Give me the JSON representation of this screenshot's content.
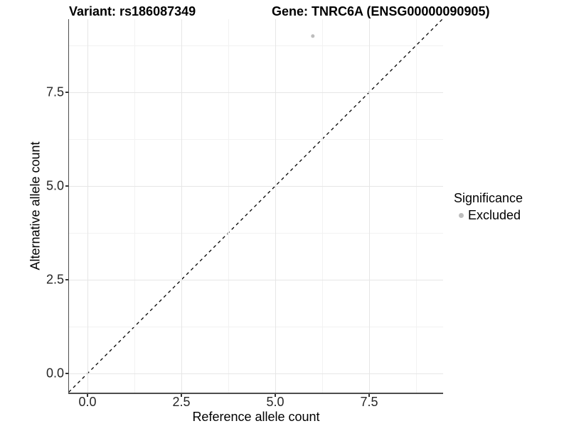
{
  "header": {
    "variant_title": "Variant: rs186087349",
    "gene_title": "Gene: TNRC6A (ENSG00000090905)"
  },
  "chart_data": {
    "type": "scatter",
    "title": "Variant: rs186087349   Gene: TNRC6A (ENSG00000090905)",
    "xlabel": "Reference allele count",
    "ylabel": "Alternative allele count",
    "xlim": [
      -0.5,
      9.45
    ],
    "ylim": [
      -0.5,
      9.45
    ],
    "x_ticks": {
      "values": [
        0,
        2.5,
        5,
        7.5
      ],
      "labels": [
        "0.0",
        "2.5",
        "5.0",
        "7.5"
      ]
    },
    "y_ticks": {
      "values": [
        0,
        2.5,
        5,
        7.5
      ],
      "labels": [
        "0.0",
        "2.5",
        "5.0",
        "7.5"
      ]
    },
    "grid": {
      "major": true,
      "minor": true,
      "major_color": "#e6e6e6",
      "minor_color": "#f2f2f2"
    },
    "series": [
      {
        "name": "Excluded",
        "color": "#bdbdbd",
        "points": [
          [
            6,
            9
          ]
        ],
        "point_radius": 2.5
      }
    ],
    "reference_line": {
      "slope": 1,
      "intercept": 0,
      "style": "dashed",
      "color": "#000000",
      "width": 1.3,
      "dash": "4.5,4.5"
    },
    "legend": {
      "title": "Significance",
      "position": "right",
      "entries": [
        {
          "label": "Excluded",
          "color": "#bdbdbd",
          "marker": "circle"
        }
      ]
    }
  },
  "colors": {
    "axis_line": "#4d4d4d",
    "tick_text": "#262626",
    "background": "#ffffff"
  }
}
